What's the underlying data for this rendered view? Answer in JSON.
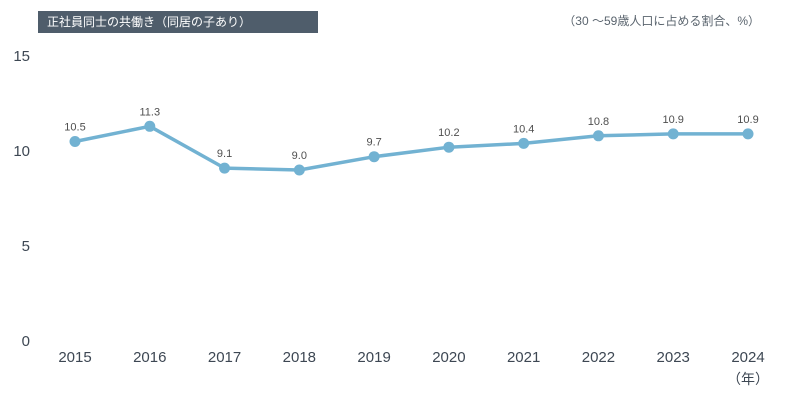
{
  "header": {
    "title_badge": "正社員同士の共働き（同居の子あり）",
    "unit_note": "（30 ～59歳人口に占める割合、%）"
  },
  "colors": {
    "line": "#72b2d2",
    "marker": "#72b2d2",
    "badge_bg": "#4f5d6b",
    "badge_text": "#ffffff",
    "axis_text": "#3d4753",
    "data_label_text": "#4f4f4f",
    "note_text": "#5a646e"
  },
  "chart_data": {
    "type": "line",
    "title": "正社員同士の共働き（同居の子あり）",
    "subtitle": "（30 ～59歳人口に占める割合、%）",
    "x": [
      2015,
      2016,
      2017,
      2018,
      2019,
      2020,
      2021,
      2022,
      2023,
      2024
    ],
    "series": [
      {
        "name": "正社員同士の共働き（同居の子あり）",
        "values": [
          10.5,
          11.3,
          9.1,
          9.0,
          9.7,
          10.2,
          10.4,
          10.8,
          10.9,
          10.9
        ]
      }
    ],
    "ylim": [
      0,
      15
    ],
    "yticks": [
      0,
      5,
      10,
      15
    ],
    "xlabel": "（年）",
    "ylabel": "",
    "grid": false,
    "legend": false,
    "data_labels": true
  }
}
